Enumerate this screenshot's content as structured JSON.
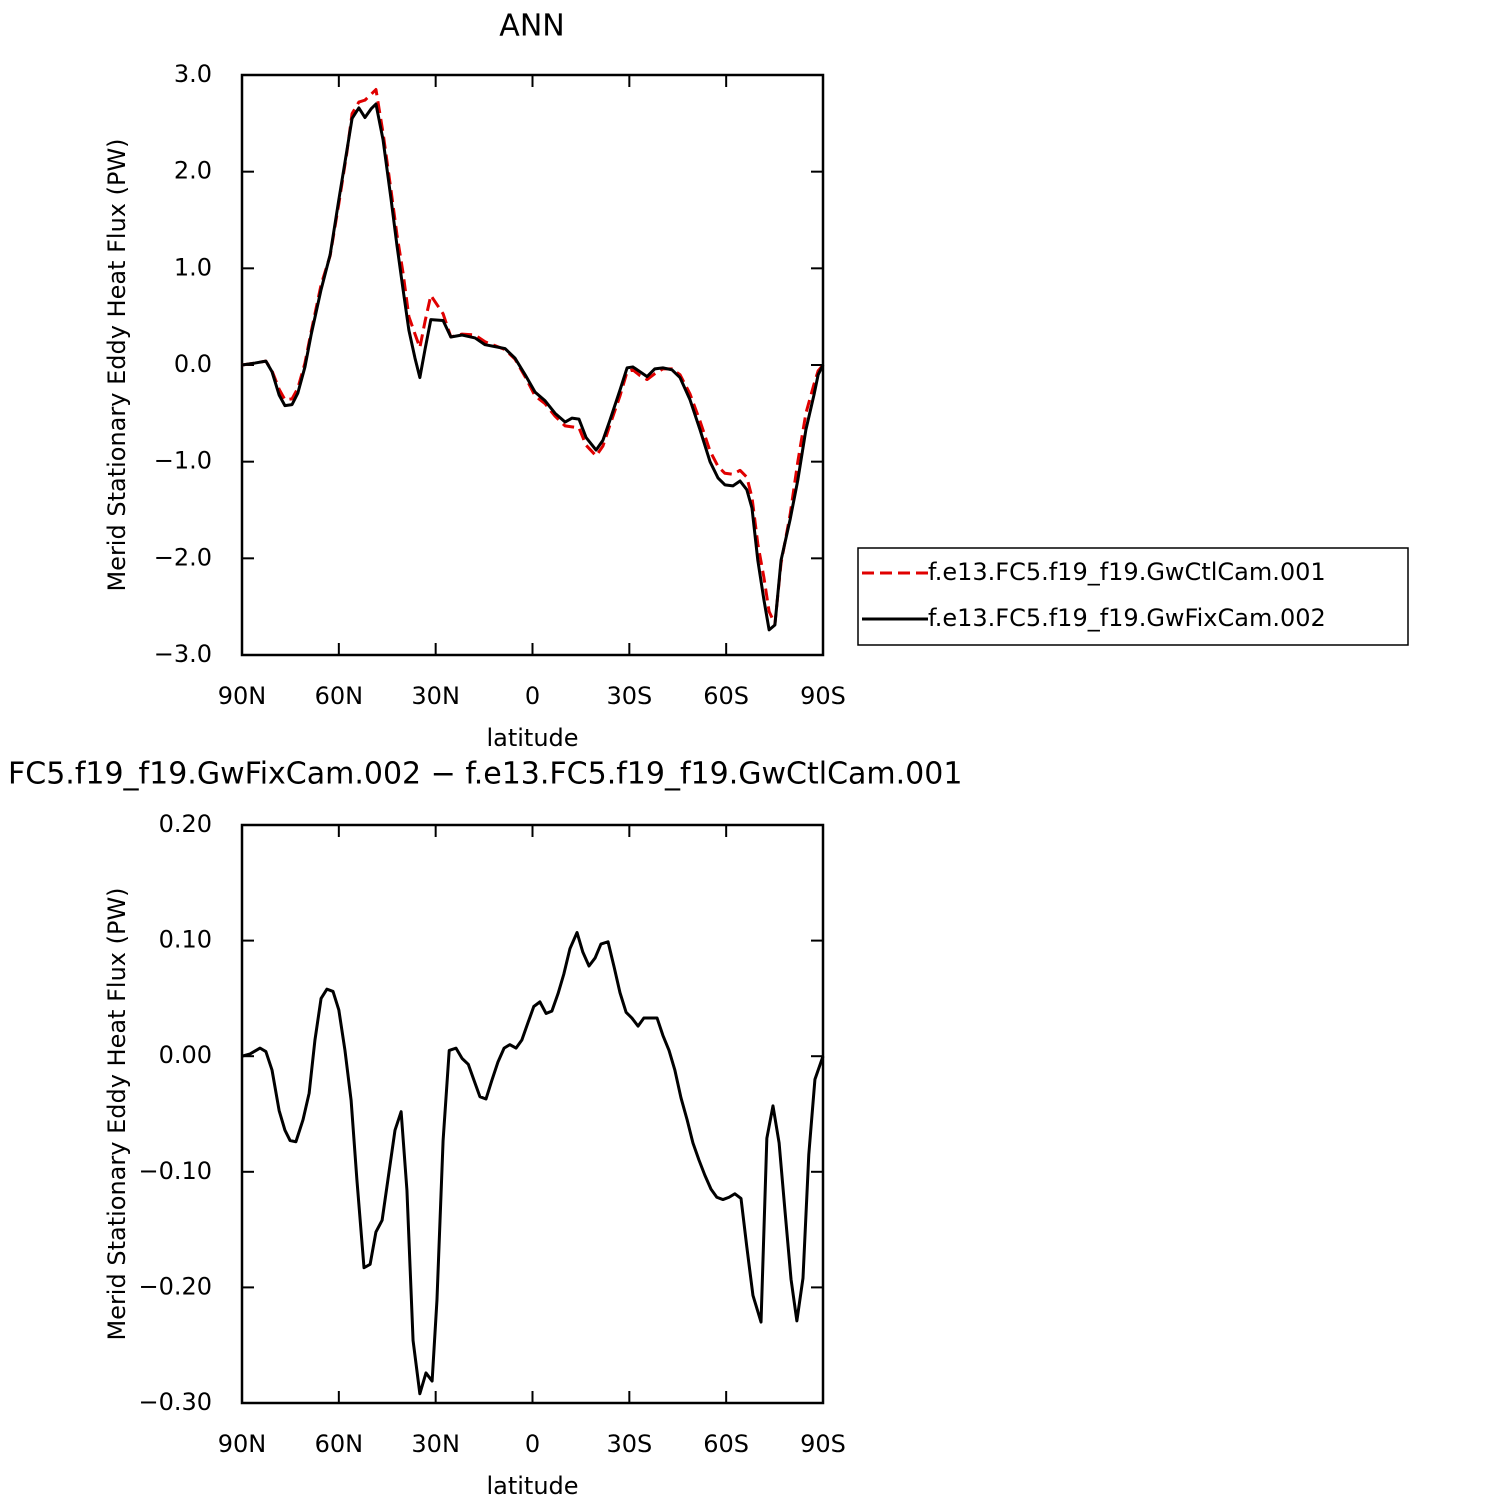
{
  "chart_data": [
    {
      "type": "line",
      "title": "ANN",
      "x_label": "latitude",
      "y_label": "Merid Stationary Eddy Heat Flux (PW)",
      "x": [
        90,
        86,
        82.6,
        80.7,
        78.5,
        76.7,
        74.5,
        72.7,
        70.5,
        68.6,
        65.5,
        62.7,
        60,
        57.5,
        55.9,
        53.8,
        51.9,
        50,
        48.5,
        46.3,
        43.8,
        42,
        40.1,
        38.3,
        36.4,
        34.9,
        33.3,
        31.5,
        27.7,
        25.3,
        21.8,
        17.8,
        14.7,
        11.6,
        8.5,
        5.4,
        2.3,
        -0.8,
        -3.9,
        -7,
        -10.1,
        -12.2,
        -14.4,
        -16.6,
        -19.7,
        -21.8,
        -24,
        -27.1,
        -29.3,
        -31.1,
        -33.3,
        -35.5,
        -37.9,
        -40.4,
        -43.2,
        -45.7,
        -48.8,
        -51.9,
        -55,
        -57.5,
        -59.6,
        -62.1,
        -64.3,
        -66.4,
        -68,
        -69.8,
        -71.7,
        -73.3,
        -75.1,
        -77,
        -79.8,
        -82.2,
        -84.7,
        -87.2,
        -88.5,
        -90
      ],
      "series": [
        {
          "name": "f.e13.FC5.f19_f19.GwCtlCam.001",
          "color": "#e00000",
          "line_style": "dashed",
          "values": [
            0,
            0.02,
            0.04,
            -0.06,
            -0.25,
            -0.36,
            -0.35,
            -0.24,
            0.02,
            0.34,
            0.83,
            1.13,
            1.67,
            2.2,
            2.6,
            2.72,
            2.74,
            2.8,
            2.85,
            2.4,
            1.8,
            1.35,
            0.95,
            0.5,
            0.32,
            0.18,
            0.45,
            0.72,
            0.53,
            0.29,
            0.32,
            0.31,
            0.24,
            0.2,
            0.16,
            0.06,
            -0.12,
            -0.32,
            -0.4,
            -0.53,
            -0.63,
            -0.64,
            -0.65,
            -0.83,
            -0.94,
            -0.84,
            -0.62,
            -0.32,
            -0.07,
            -0.05,
            -0.11,
            -0.15,
            -0.09,
            -0.04,
            -0.04,
            -0.1,
            -0.3,
            -0.58,
            -0.89,
            -1.05,
            -1.12,
            -1.13,
            -1.09,
            -1.16,
            -1.37,
            -1.85,
            -2.2,
            -2.55,
            -2.68,
            -2.05,
            -1.55,
            -1.0,
            -0.5,
            -0.2,
            -0.06,
            0
          ]
        },
        {
          "name": "f.e13.FC5.f19_f19.GwFixCam.002",
          "color": "#000000",
          "line_style": "solid",
          "values": [
            0,
            0.02,
            0.04,
            -0.07,
            -0.31,
            -0.42,
            -0.41,
            -0.29,
            -0.02,
            0.31,
            0.78,
            1.14,
            1.71,
            2.22,
            2.55,
            2.66,
            2.56,
            2.65,
            2.7,
            2.33,
            1.71,
            1.24,
            0.78,
            0.36,
            0.07,
            -0.13,
            0.16,
            0.47,
            0.46,
            0.29,
            0.31,
            0.28,
            0.21,
            0.19,
            0.17,
            0.07,
            -0.1,
            -0.28,
            -0.37,
            -0.5,
            -0.59,
            -0.55,
            -0.56,
            -0.75,
            -0.88,
            -0.78,
            -0.57,
            -0.26,
            -0.03,
            -0.02,
            -0.07,
            -0.12,
            -0.04,
            -0.03,
            -0.05,
            -0.13,
            -0.36,
            -0.67,
            -1.0,
            -1.17,
            -1.24,
            -1.25,
            -1.2,
            -1.29,
            -1.48,
            -2.02,
            -2.43,
            -2.74,
            -2.69,
            -2.02,
            -1.6,
            -1.19,
            -0.67,
            -0.31,
            -0.1,
            0
          ]
        }
      ],
      "xlim": [
        90,
        -90
      ],
      "xticks": [
        {
          "value": 90,
          "label": "90N"
        },
        {
          "value": 60,
          "label": "60N"
        },
        {
          "value": 30,
          "label": "30N"
        },
        0,
        {
          "value": -30,
          "label": "30S"
        },
        {
          "value": -60,
          "label": "60S"
        },
        {
          "value": -90,
          "label": "90S"
        }
      ],
      "ylim": [
        -3,
        3
      ],
      "yticks": [
        {
          "value": 3,
          "label": "3.0"
        },
        {
          "value": 2,
          "label": "2.0"
        },
        {
          "value": 1,
          "label": "1.0"
        },
        {
          "value": 0,
          "label": "0.0"
        },
        {
          "value": -1,
          "label": "−1.0"
        },
        {
          "value": -2,
          "label": "−2.0"
        },
        {
          "value": -3,
          "label": "−3.0"
        }
      ],
      "legend": "right"
    },
    {
      "type": "line",
      "title": "FC5.f19_f19.GwFixCam.002 − f.e13.FC5.f19_f19.GwCtlCam.001",
      "x_label": "latitude",
      "y_label": "Merid Stationary Eddy Heat Flux (PW)",
      "x": [
        90,
        87.5,
        84.4,
        82.6,
        80.7,
        78.5,
        76.7,
        75.1,
        73.3,
        71.1,
        69.2,
        67.4,
        65.5,
        63.7,
        61.8,
        60,
        58.1,
        56.2,
        54.4,
        52.2,
        50.3,
        48.5,
        46.6,
        44.8,
        42.6,
        40.7,
        38.9,
        37,
        34.9,
        33,
        31.1,
        29.6,
        27.7,
        25.8,
        23.7,
        21.8,
        19.9,
        18.1,
        16.3,
        14.4,
        12.6,
        10.7,
        8.8,
        7,
        5.1,
        3.3,
        1.4,
        -0.4,
        -2.3,
        -4.2,
        -6,
        -7.9,
        -9.7,
        -11.6,
        -13.8,
        -15.6,
        -17.5,
        -19.4,
        -21.2,
        -23.4,
        -25.3,
        -27.1,
        -29,
        -30.8,
        -32.7,
        -34.5,
        -36.4,
        -38.6,
        -40.4,
        -42.3,
        -44.1,
        -46,
        -47.9,
        -49.7,
        -51.6,
        -53.4,
        -55.3,
        -57.1,
        -59,
        -60.9,
        -62.7,
        -64.6,
        -66.4,
        -68.3,
        -70.8,
        -72.6,
        -74.5,
        -76.4,
        -78.2,
        -80.1,
        -81.9,
        -83.8,
        -85.6,
        -87.5,
        -90
      ],
      "series": [
        {
          "color": "#000000",
          "line_style": "solid",
          "values": [
            0,
            0.002,
            0.007,
            0.004,
            -0.012,
            -0.047,
            -0.064,
            -0.073,
            -0.074,
            -0.055,
            -0.032,
            0.014,
            0.05,
            0.058,
            0.056,
            0.04,
            0.005,
            -0.038,
            -0.107,
            -0.183,
            -0.18,
            -0.152,
            -0.142,
            -0.107,
            -0.064,
            -0.048,
            -0.116,
            -0.246,
            -0.292,
            -0.274,
            -0.281,
            -0.211,
            -0.073,
            0.005,
            0.007,
            -0.002,
            -0.007,
            -0.021,
            -0.035,
            -0.037,
            -0.021,
            -0.005,
            0.007,
            0.01,
            0.007,
            0.014,
            0.029,
            0.043,
            0.047,
            0.037,
            0.039,
            0.054,
            0.071,
            0.093,
            0.107,
            0.09,
            0.078,
            0.085,
            0.097,
            0.099,
            0.077,
            0.055,
            0.038,
            0.033,
            0.026,
            0.033,
            0.033,
            0.033,
            0.018,
            0.005,
            -0.012,
            -0.036,
            -0.055,
            -0.075,
            -0.09,
            -0.103,
            -0.115,
            -0.122,
            -0.124,
            -0.122,
            -0.119,
            -0.123,
            -0.165,
            -0.207,
            -0.23,
            -0.071,
            -0.043,
            -0.075,
            -0.133,
            -0.193,
            -0.229,
            -0.192,
            -0.085,
            -0.02,
            0
          ]
        }
      ],
      "xlim": [
        90,
        -90
      ],
      "xticks": [
        {
          "value": 90,
          "label": "90N"
        },
        {
          "value": 60,
          "label": "60N"
        },
        {
          "value": 30,
          "label": "30N"
        },
        0,
        {
          "value": -30,
          "label": "30S"
        },
        {
          "value": -60,
          "label": "60S"
        },
        {
          "value": -90,
          "label": "90S"
        }
      ],
      "ylim": [
        -0.3,
        0.2
      ],
      "yticks": [
        {
          "value": 0.2,
          "label": "0.20"
        },
        {
          "value": 0.1,
          "label": "0.10"
        },
        {
          "value": 0,
          "label": "0.00"
        },
        {
          "value": -0.1,
          "label": "−0.10"
        },
        {
          "value": -0.2,
          "label": "−0.20"
        },
        {
          "value": -0.3,
          "label": "−0.30"
        }
      ]
    }
  ]
}
